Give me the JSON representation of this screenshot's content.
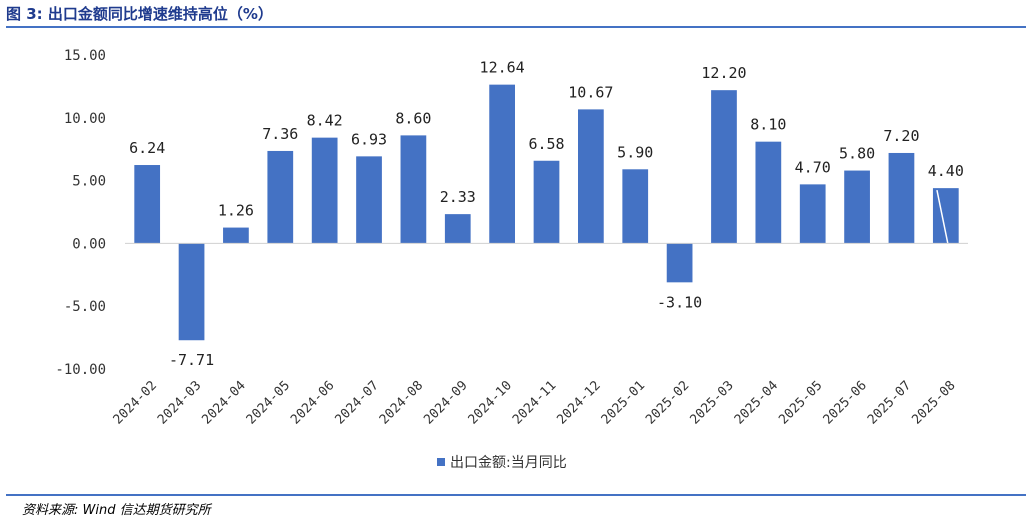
{
  "header": {
    "title": "图 3:  出口金额同比增速维持高位（%）"
  },
  "footer": {
    "source": "资料来源:   Wind  信达期货研究所"
  },
  "colors": {
    "bar": "#4472c4",
    "rule": "#4472c4",
    "title": "#1f3b8e"
  },
  "chart_data": {
    "type": "bar",
    "title": "",
    "xlabel": "",
    "ylabel": "",
    "categories": [
      "2024-02",
      "2024-03",
      "2024-04",
      "2024-05",
      "2024-06",
      "2024-07",
      "2024-08",
      "2024-09",
      "2024-10",
      "2024-11",
      "2024-12",
      "2025-01",
      "2025-02",
      "2025-03",
      "2025-04",
      "2025-05",
      "2025-06",
      "2025-07",
      "2025-08"
    ],
    "series": [
      {
        "name": "出口金额:当月同比",
        "values": [
          6.24,
          -7.71,
          1.26,
          7.36,
          8.42,
          6.93,
          8.6,
          2.33,
          12.64,
          6.58,
          10.67,
          5.9,
          -3.1,
          12.2,
          8.1,
          4.7,
          5.8,
          7.2,
          4.4
        ],
        "labels": [
          "6.24",
          "-7.71",
          "1.26",
          "7.36",
          "8.42",
          "6.93",
          "8.60",
          "2.33",
          "12.64",
          "6.58",
          "10.67",
          "5.90",
          "-3.10",
          "12.20",
          "8.10",
          "4.70",
          "5.80",
          "7.20",
          "4.40"
        ]
      }
    ],
    "ylim": [
      -10,
      15
    ],
    "yticks": [
      "15.00",
      "10.00",
      "5.00",
      "0.00",
      "-5.00",
      "-10.00"
    ],
    "legend_position": "bottom-center",
    "grid": false
  }
}
